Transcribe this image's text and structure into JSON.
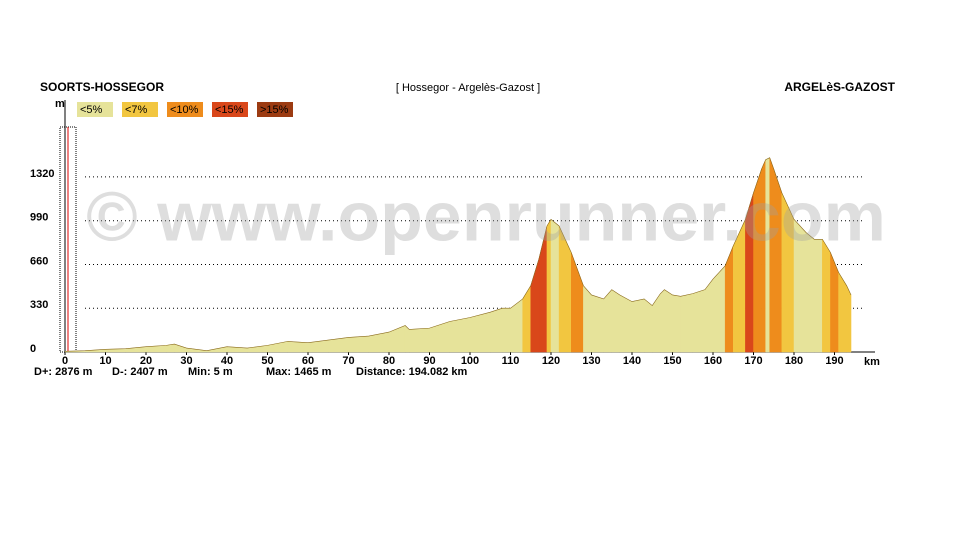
{
  "chart_data": {
    "type": "area",
    "start_label": "SOORTS-HOSSEGOR",
    "subtitle": "[ Hossegor - Argelès-Gazost ]",
    "end_label": "ARGELèS-GAZOST",
    "y_label": "m",
    "x_label": "km",
    "watermark": "© www.openrunner.com",
    "legend": [
      {
        "value": 5,
        "label": "<5%",
        "color": "#e6e39a"
      },
      {
        "value": 7,
        "label": "<7%",
        "color": "#f2c640"
      },
      {
        "value": 10,
        "label": "<10%",
        "color": "#ee8c1c"
      },
      {
        "value": 15,
        "label": "<15%",
        "color": "#d9471a"
      },
      {
        "value": 1000,
        "label": ">15%",
        "color": "#9c3b12"
      }
    ],
    "stats": [
      "D+: 2876 m",
      "D-: 2407 m",
      "Min: 5 m",
      "Max: 1465 m",
      "Distance: 194.082 km"
    ],
    "x": [
      0,
      5,
      10,
      15,
      20,
      25,
      27,
      30,
      35,
      40,
      45,
      50,
      55,
      60,
      65,
      70,
      75,
      80,
      84,
      85,
      90,
      95,
      100,
      105,
      108,
      110,
      113,
      115,
      117,
      119,
      120,
      122,
      125,
      128,
      130,
      133,
      135,
      137,
      140,
      143,
      145,
      147,
      148,
      150,
      152,
      155,
      158,
      160,
      163,
      165,
      168,
      170,
      172,
      173,
      174,
      175,
      177,
      180,
      183,
      185,
      187,
      189,
      191,
      193,
      194.082
    ],
    "values": [
      5,
      10,
      20,
      25,
      40,
      50,
      60,
      30,
      10,
      40,
      30,
      50,
      80,
      70,
      90,
      110,
      120,
      150,
      200,
      170,
      180,
      230,
      260,
      300,
      330,
      330,
      400,
      500,
      700,
      950,
      1000,
      950,
      750,
      500,
      430,
      400,
      470,
      430,
      380,
      400,
      350,
      440,
      470,
      430,
      420,
      440,
      470,
      550,
      650,
      800,
      1000,
      1200,
      1380,
      1450,
      1465,
      1380,
      1200,
      1000,
      900,
      850,
      850,
      750,
      600,
      500,
      430
    ],
    "xlim": [
      0,
      200
    ],
    "ylim": [
      0,
      1900
    ],
    "xticks": [
      0,
      10,
      20,
      30,
      40,
      50,
      60,
      70,
      80,
      90,
      100,
      110,
      120,
      130,
      140,
      150,
      160,
      170,
      180,
      190
    ],
    "yticks": [
      0,
      330,
      660,
      990,
      1320
    ],
    "grid": true
  }
}
